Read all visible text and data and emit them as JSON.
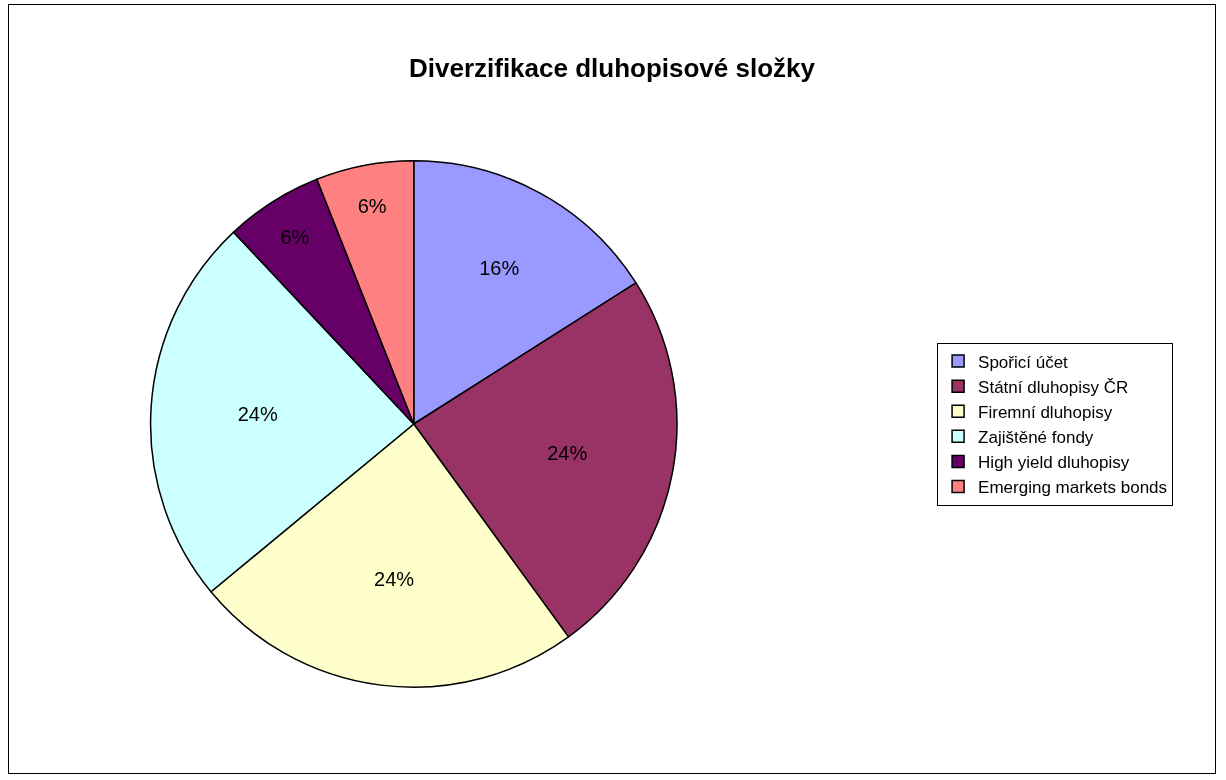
{
  "chart_data": {
    "type": "pie",
    "title": "Diverzifikace dluhopisové složky",
    "categories": [
      "Spořicí účet",
      "Státní dluhopisy ČR",
      "Firemní dluhopisy",
      "Zajištěné fondy",
      "High yield dluhopisy",
      "Emerging markets bonds"
    ],
    "values": [
      16,
      24,
      24,
      24,
      6,
      6
    ],
    "value_labels": [
      "16%",
      "24%",
      "24%",
      "24%",
      "6%",
      "6%"
    ],
    "colors": [
      "#9999ff",
      "#993366",
      "#ffffcc",
      "#ccffff",
      "#660066",
      "#ff8080"
    ],
    "legend": "right"
  }
}
